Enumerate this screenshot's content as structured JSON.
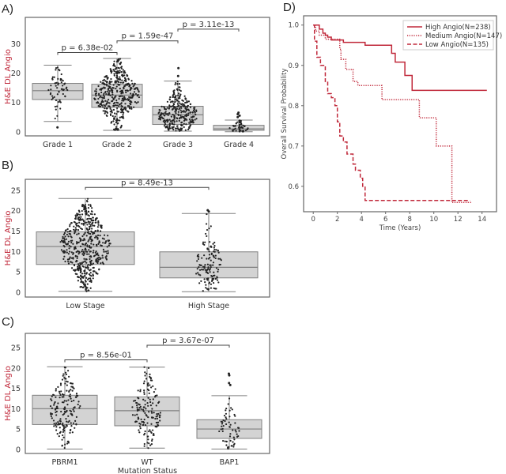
{
  "panel_labels": [
    "A)",
    "B)",
    "C)",
    "D)"
  ],
  "colors": {
    "box_fill": "#d3d3d3",
    "box_edge": "#808080",
    "dots": "#222222",
    "angio_red": "#c0283a",
    "axis": "#666666"
  },
  "chart_data": [
    {
      "type": "box",
      "label": "A)",
      "ylabel": "H&E DL Angio",
      "xlabel": "",
      "ylim": [
        -1.4,
        39
      ],
      "yticks": [
        0,
        10,
        20,
        30
      ],
      "categories": [
        "Grade 1",
        "Grade 2",
        "Grade 3",
        "Grade 4"
      ],
      "boxes": [
        {
          "whislo": 3.5,
          "q1": 11,
          "med": 14,
          "q3": 16.5,
          "whishi": 22.7,
          "outliers": [
            1.5
          ],
          "n": 60
        },
        {
          "whislo": 0.5,
          "q1": 8.3,
          "med": 12.5,
          "q3": 16.2,
          "whishi": 25,
          "outliers": [],
          "n": 420
        },
        {
          "whislo": 0.2,
          "q1": 2.5,
          "med": 5.8,
          "q3": 8.7,
          "whishi": 17.3,
          "outliers": [
            19,
            21.7
          ],
          "n": 300
        },
        {
          "whislo": 0,
          "q1": 0.5,
          "med": 1.0,
          "q3": 2.2,
          "whishi": 4,
          "outliers": [
            5,
            5.5,
            6,
            6.5
          ],
          "n": 45
        }
      ],
      "annotations": [
        {
          "from": 0,
          "to": 1,
          "y": 27,
          "text": "p = 6.38e-02"
        },
        {
          "from": 1,
          "to": 2,
          "y": 31,
          "text": "p = 1.59e-47"
        },
        {
          "from": 2,
          "to": 3,
          "y": 35,
          "text": "p = 3.11e-13"
        }
      ]
    },
    {
      "type": "box",
      "label": "B)",
      "ylabel": "H&E DL Angio",
      "xlabel": "",
      "ylim": [
        -1.2,
        27.7
      ],
      "yticks": [
        0,
        5,
        10,
        15,
        20,
        25
      ],
      "categories": [
        "Low Stage",
        "High Stage"
      ],
      "boxes": [
        {
          "whislo": 0.2,
          "q1": 6.8,
          "med": 11.2,
          "q3": 14.8,
          "whishi": 23,
          "outliers": [],
          "n": 520
        },
        {
          "whislo": 0.1,
          "q1": 3.5,
          "med": 6.1,
          "q3": 9.9,
          "whishi": 19.3,
          "outliers": [
            19.8,
            20.1
          ],
          "n": 130
        }
      ],
      "annotations": [
        {
          "from": 0,
          "to": 1,
          "y": 25.7,
          "text": "p = 8.49e-13"
        }
      ]
    },
    {
      "type": "box",
      "label": "C)",
      "ylabel": "H&E DL Angio",
      "xlabel": "Mutation Status",
      "ylim": [
        -1,
        28.5
      ],
      "yticks": [
        0,
        5,
        10,
        15,
        20,
        25
      ],
      "categories": [
        "PBRM1",
        "WT",
        "BAP1"
      ],
      "boxes": [
        {
          "whislo": 0.1,
          "q1": 6.1,
          "med": 10,
          "q3": 13.3,
          "whishi": 20.3,
          "outliers": [],
          "n": 170
        },
        {
          "whislo": 0.3,
          "q1": 5.8,
          "med": 9.5,
          "q3": 12.9,
          "whishi": 20.2,
          "outliers": [],
          "n": 150
        },
        {
          "whislo": 0.1,
          "q1": 2.7,
          "med": 5,
          "q3": 7.3,
          "whishi": 13.2,
          "outliers": [
            15.8,
            16.3,
            18.2,
            18.6
          ],
          "n": 60
        }
      ],
      "annotations": [
        {
          "from": 0,
          "to": 1,
          "y": 22,
          "text": "p = 8.56e-01"
        },
        {
          "from": 1,
          "to": 2,
          "y": 25.6,
          "text": "p = 3.67e-07"
        }
      ]
    },
    {
      "type": "line",
      "label": "D)",
      "title": "",
      "xlabel": "Time (Years)",
      "ylabel": "Overall Survival Probability",
      "xlim": [
        -0.8,
        15.2
      ],
      "ylim": [
        0.537,
        1.023
      ],
      "xticks": [
        0,
        2,
        4,
        6,
        8,
        10,
        12,
        14
      ],
      "yticks": [
        0.6,
        0.7,
        0.8,
        0.9,
        1.0
      ],
      "ytick_labels": [
        "0.6",
        "0.7",
        "0.8",
        "0.9",
        "1.0"
      ],
      "legend_position": "top-right",
      "step": true,
      "series": [
        {
          "name": "High Angio(N=238)",
          "style": "solid",
          "x": [
            0,
            0.5,
            0.8,
            1.0,
            1.2,
            1.5,
            2.5,
            4.3,
            6.5,
            6.8,
            7.6,
            8.2,
            14.4
          ],
          "y": [
            1.0,
            0.99,
            0.98,
            0.975,
            0.97,
            0.963,
            0.957,
            0.95,
            0.93,
            0.908,
            0.875,
            0.838,
            0.838
          ]
        },
        {
          "name": "Medium Angio(N=147)",
          "style": "dotted",
          "x": [
            0,
            0.2,
            0.5,
            1.0,
            2.2,
            2.3,
            2.7,
            3.3,
            3.7,
            5.7,
            8.8,
            10.2,
            11.5,
            13.1
          ],
          "y": [
            1.0,
            0.985,
            0.975,
            0.965,
            0.94,
            0.915,
            0.89,
            0.86,
            0.85,
            0.815,
            0.77,
            0.7,
            0.56,
            0.56
          ]
        },
        {
          "name": "Low Angio(N=135)",
          "style": "dashed",
          "x": [
            0,
            0.1,
            0.3,
            0.6,
            1.0,
            1.2,
            1.5,
            1.8,
            2.0,
            2.2,
            2.5,
            2.8,
            3.3,
            3.5,
            3.9,
            4.1,
            4.3,
            13.0
          ],
          "y": [
            1.0,
            0.96,
            0.92,
            0.9,
            0.86,
            0.83,
            0.82,
            0.8,
            0.76,
            0.725,
            0.71,
            0.68,
            0.655,
            0.64,
            0.62,
            0.6,
            0.565,
            0.565
          ]
        }
      ]
    }
  ]
}
